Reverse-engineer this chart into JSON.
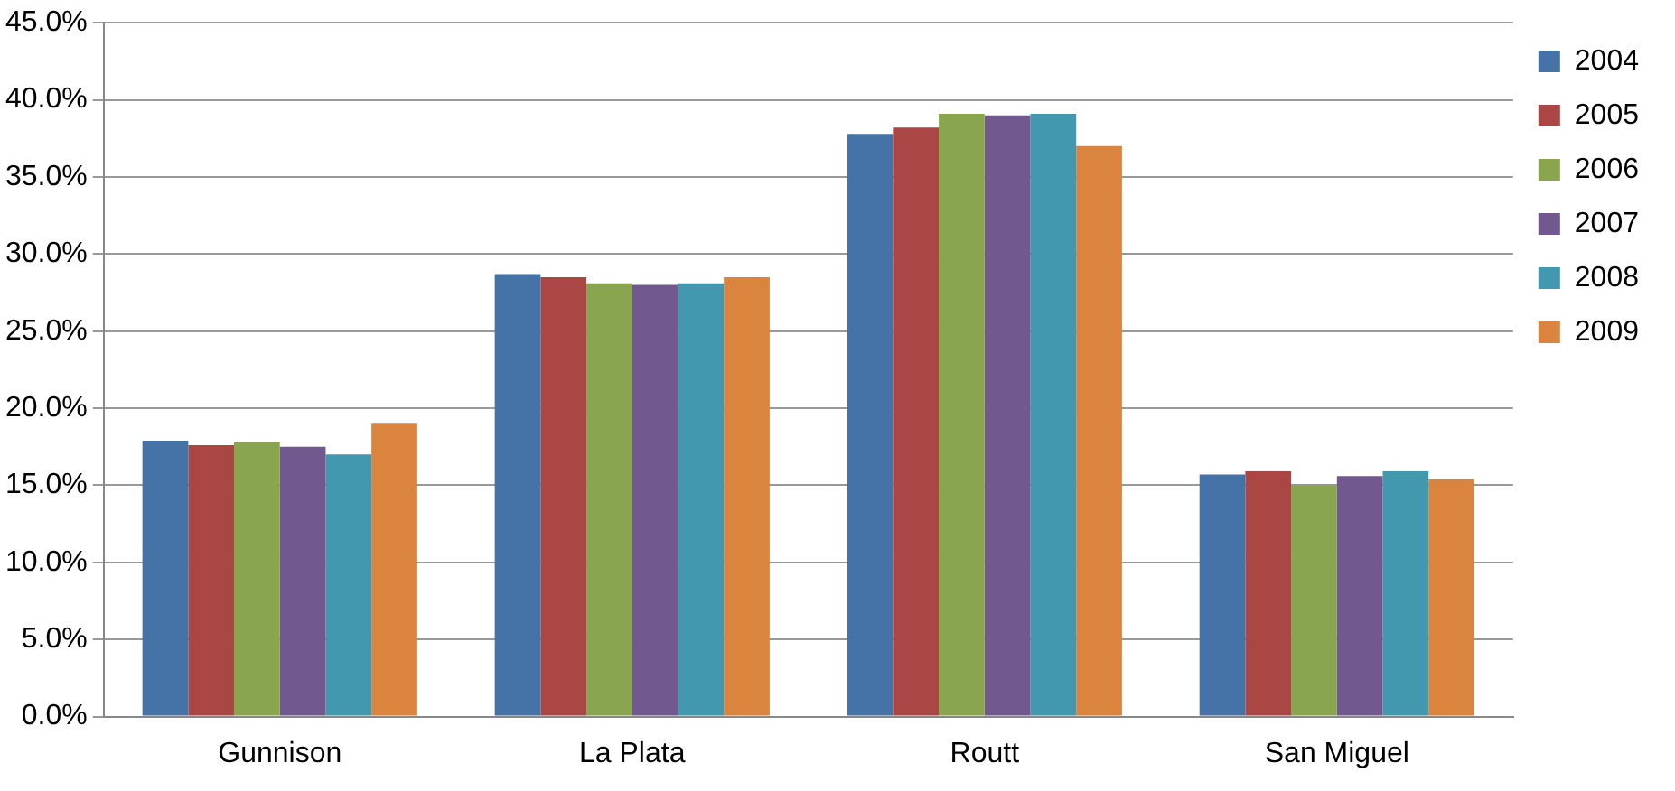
{
  "chart_data": {
    "type": "bar",
    "categories": [
      "Gunnison",
      "La Plata",
      "Routt",
      "San Miguel"
    ],
    "series": [
      {
        "name": "2004",
        "color": "#4572a7",
        "values": [
          17.9,
          28.7,
          37.8,
          15.7
        ]
      },
      {
        "name": "2005",
        "color": "#aa4643",
        "values": [
          17.6,
          28.5,
          38.2,
          15.9
        ]
      },
      {
        "name": "2006",
        "color": "#89a54e",
        "values": [
          17.8,
          28.1,
          39.1,
          15.0
        ]
      },
      {
        "name": "2007",
        "color": "#71588f",
        "values": [
          17.5,
          28.0,
          39.0,
          15.6
        ]
      },
      {
        "name": "2008",
        "color": "#4198af",
        "values": [
          17.0,
          28.1,
          39.1,
          15.9
        ]
      },
      {
        "name": "2009",
        "color": "#db843d",
        "values": [
          19.0,
          28.5,
          37.0,
          15.4
        ]
      }
    ],
    "ylim": [
      0,
      45
    ],
    "yticks": [
      {
        "value": 0,
        "label": "0.0%"
      },
      {
        "value": 5,
        "label": "5.0%"
      },
      {
        "value": 10,
        "label": "10.0%"
      },
      {
        "value": 15,
        "label": "15.0%"
      },
      {
        "value": 20,
        "label": "20.0%"
      },
      {
        "value": 25,
        "label": "25.0%"
      },
      {
        "value": 30,
        "label": "30.0%"
      },
      {
        "value": 35,
        "label": "35.0%"
      },
      {
        "value": 40,
        "label": "40.0%"
      },
      {
        "value": 45,
        "label": "45.0%"
      }
    ],
    "grid": "y",
    "legend": "right"
  }
}
